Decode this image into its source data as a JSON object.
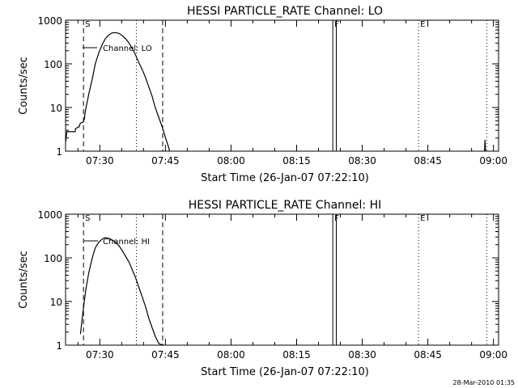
{
  "footer_timestamp": "28-Mar-2010 01:35",
  "colors": {
    "line": "#000000",
    "background": "#ffffff"
  },
  "chart_data": [
    {
      "type": "line",
      "title": "HESSI PARTICLE_RATE Channel: LO",
      "xlabel": "Start Time (26-Jan-07 07:22:10)",
      "ylabel": "Counts/sec",
      "yscale": "log",
      "ylim": [
        1,
        1000
      ],
      "xlim_minutes": [
        0,
        99
      ],
      "x_ticks": [
        {
          "label": "07:30",
          "value": 7.83
        },
        {
          "label": "07:45",
          "value": 22.83
        },
        {
          "label": "08:00",
          "value": 37.83
        },
        {
          "label": "08:15",
          "value": 52.83
        },
        {
          "label": "08:30",
          "value": 67.83
        },
        {
          "label": "08:45",
          "value": 82.83
        },
        {
          "label": "09:00",
          "value": 97.83
        }
      ],
      "y_ticks": [
        {
          "label": "1000",
          "value": 1000
        },
        {
          "label": "100",
          "value": 100
        },
        {
          "label": "10",
          "value": 10
        },
        {
          "label": "1",
          "value": 1
        }
      ],
      "legend": {
        "label": "Channel: LO",
        "placement": "top-left"
      },
      "markers": [
        {
          "label": "S",
          "x": 4.1,
          "style": "dashed"
        },
        {
          "label": "",
          "x": 16.2,
          "style": "dotted"
        },
        {
          "label": "",
          "x": 22.2,
          "style": "dashed"
        },
        {
          "label": "F",
          "x": 61.1,
          "style": "solid"
        },
        {
          "label": "",
          "x": 61.9,
          "style": "solid"
        },
        {
          "label": "E",
          "x": 80.7,
          "style": "dotted"
        },
        {
          "label": "",
          "x": 96.3,
          "style": "dotted"
        }
      ],
      "series": [
        {
          "name": "Channel: LO",
          "x": [
            0,
            0.3,
            2.2,
            2.3,
            2.8,
            2.9,
            3.1,
            3.3,
            3.6,
            4.0,
            4.3,
            4.5,
            5.3,
            6.1,
            6.8,
            7.6,
            8.4,
            9.1,
            9.9,
            10.6,
            11.4,
            12.2,
            12.9,
            13.7,
            14.5,
            15.2,
            16.0,
            16.7,
            17.5,
            18.3,
            19.0,
            19.8,
            20.5,
            21.3,
            22.1,
            22.8,
            23.6,
            23.8
          ],
          "y": [
            1.6,
            2.8,
            2.8,
            3.3,
            3.5,
            3.6,
            3.6,
            4.2,
            4.5,
            4.6,
            5.4,
            8,
            20,
            45,
            100,
            180,
            280,
            380,
            460,
            510,
            520,
            500,
            450,
            380,
            300,
            230,
            160,
            110,
            75,
            48,
            30,
            18,
            10,
            6,
            3.6,
            2.1,
            1.2,
            1.0
          ]
        },
        {
          "name": "spike",
          "x": [
            95.8,
            95.9,
            96.0
          ],
          "y": [
            1.0,
            1.8,
            1.0
          ]
        }
      ]
    },
    {
      "type": "line",
      "title": "HESSI PARTICLE_RATE Channel: HI",
      "xlabel": "Start Time (26-Jan-07 07:22:10)",
      "ylabel": "Counts/sec",
      "yscale": "log",
      "ylim": [
        1,
        1000
      ],
      "xlim_minutes": [
        0,
        99
      ],
      "x_ticks": [
        {
          "label": "07:30",
          "value": 7.83
        },
        {
          "label": "07:45",
          "value": 22.83
        },
        {
          "label": "08:00",
          "value": 37.83
        },
        {
          "label": "08:15",
          "value": 52.83
        },
        {
          "label": "08:30",
          "value": 67.83
        },
        {
          "label": "08:45",
          "value": 82.83
        },
        {
          "label": "09:00",
          "value": 97.83
        }
      ],
      "y_ticks": [
        {
          "label": "1000",
          "value": 1000
        },
        {
          "label": "100",
          "value": 100
        },
        {
          "label": "10",
          "value": 10
        },
        {
          "label": "1",
          "value": 1
        }
      ],
      "legend": {
        "label": "Channel: HI",
        "placement": "top-left"
      },
      "markers": [
        {
          "label": "S",
          "x": 4.1,
          "style": "dashed"
        },
        {
          "label": "",
          "x": 16.2,
          "style": "dotted"
        },
        {
          "label": "",
          "x": 22.2,
          "style": "dashed"
        },
        {
          "label": "F",
          "x": 61.1,
          "style": "solid"
        },
        {
          "label": "",
          "x": 61.9,
          "style": "solid"
        },
        {
          "label": "E",
          "x": 80.7,
          "style": "dotted"
        },
        {
          "label": "",
          "x": 96.3,
          "style": "dotted"
        }
      ],
      "series": [
        {
          "name": "Channel: HI",
          "x": [
            3.4,
            4.0,
            4.6,
            5.3,
            6.1,
            6.8,
            7.6,
            8.4,
            9.1,
            9.9,
            10.6,
            11.4,
            12.2,
            12.9,
            13.7,
            14.5,
            15.2,
            16.0,
            16.7,
            17.5,
            18.3,
            19.0,
            19.8,
            20.5,
            21.3,
            22.1,
            22.4
          ],
          "y": [
            1.8,
            6,
            18,
            45,
            100,
            170,
            230,
            270,
            290,
            280,
            260,
            230,
            190,
            150,
            110,
            80,
            55,
            35,
            22,
            13,
            7.5,
            4.2,
            2.5,
            1.6,
            1.1,
            1.0,
            1.0
          ]
        }
      ]
    }
  ]
}
